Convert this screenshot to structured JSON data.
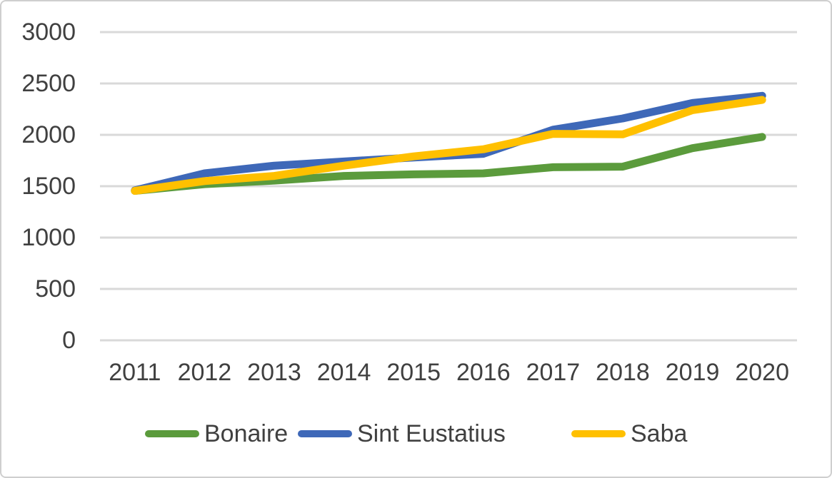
{
  "chart_data": {
    "type": "line",
    "categories": [
      "2011",
      "2012",
      "2013",
      "2014",
      "2015",
      "2016",
      "2017",
      "2018",
      "2019",
      "2020"
    ],
    "series": [
      {
        "name": "Bonaire",
        "color": "#5B9B3C",
        "values": [
          1455,
          1520,
          1555,
          1600,
          1615,
          1625,
          1685,
          1690,
          1870,
          1980
        ]
      },
      {
        "name": "Sint Eustatius",
        "color": "#3E68B8",
        "values": [
          1460,
          1625,
          1700,
          1740,
          1780,
          1815,
          2050,
          2160,
          2310,
          2380
        ]
      },
      {
        "name": "Saba",
        "color": "#FFC000",
        "values": [
          1455,
          1550,
          1600,
          1700,
          1790,
          1860,
          2010,
          2005,
          2240,
          2340
        ]
      }
    ],
    "ylim": [
      0,
      3000
    ],
    "yticks": [
      0,
      500,
      1000,
      1500,
      2000,
      2500,
      3000
    ],
    "ytick_labels": [
      "0",
      "500",
      "1000",
      "1500",
      "2000",
      "2500",
      "3000"
    ],
    "grid": "horizontal",
    "legend_position": "bottom"
  },
  "styles": {
    "background": "#FFFFFF",
    "grid_color": "#D9D9D9",
    "text_color": "#404040",
    "border_color": "#CFCFCF"
  }
}
